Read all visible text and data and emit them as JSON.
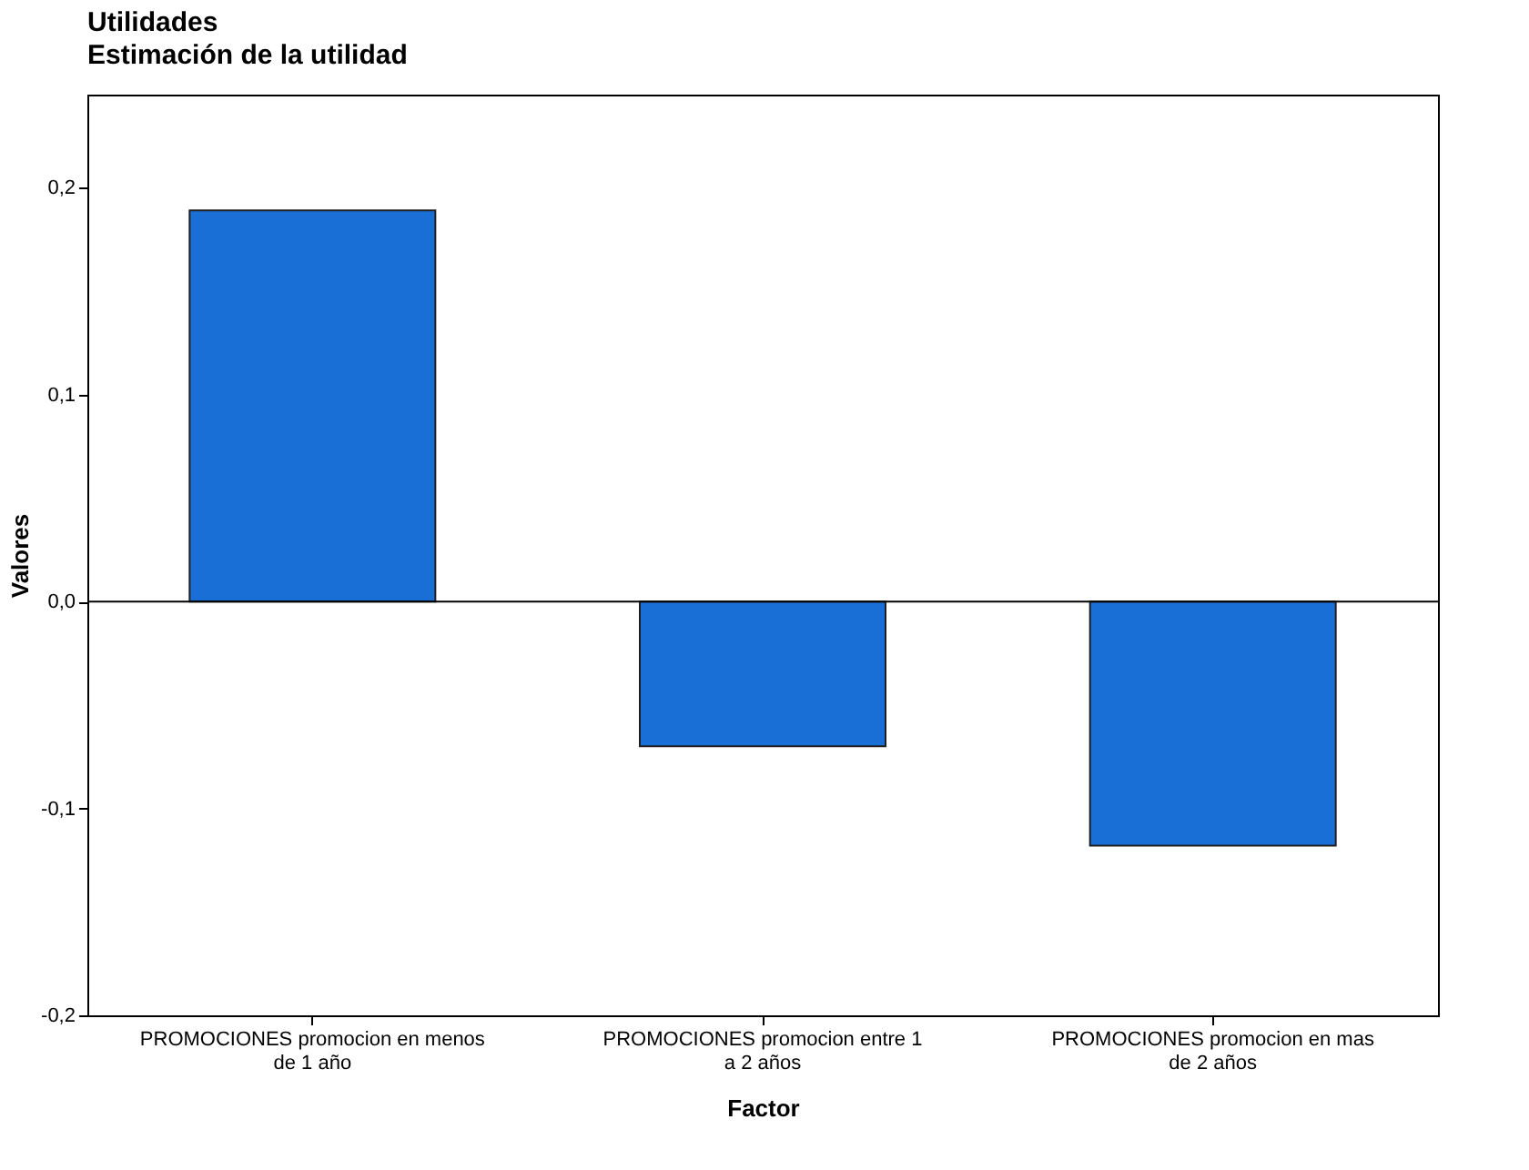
{
  "chart_data": {
    "type": "bar",
    "title": "Utilidades",
    "subtitle": "Estimación de la utilidad",
    "xlabel": "Factor",
    "ylabel": "Valores",
    "categories": [
      "PROMOCIONES promocion en menos de 1 año",
      "PROMOCIONES promocion entre 1 a 2 años",
      "PROMOCIONES promocion en mas de 2 años"
    ],
    "values": [
      0.189,
      -0.07,
      -0.118
    ],
    "color": "#1a6fd6",
    "ylim": [
      -0.2,
      0.245
    ],
    "yticks": [
      {
        "value": -0.2,
        "label": "-0,2"
      },
      {
        "value": -0.1,
        "label": "-0,1"
      },
      {
        "value": 0.0,
        "label": "0,0"
      },
      {
        "value": 0.1,
        "label": "0,1"
      },
      {
        "value": 0.2,
        "label": "0,2"
      }
    ],
    "ref_lines": [
      {
        "axis": "y",
        "value": 0
      }
    ],
    "grid": false
  }
}
